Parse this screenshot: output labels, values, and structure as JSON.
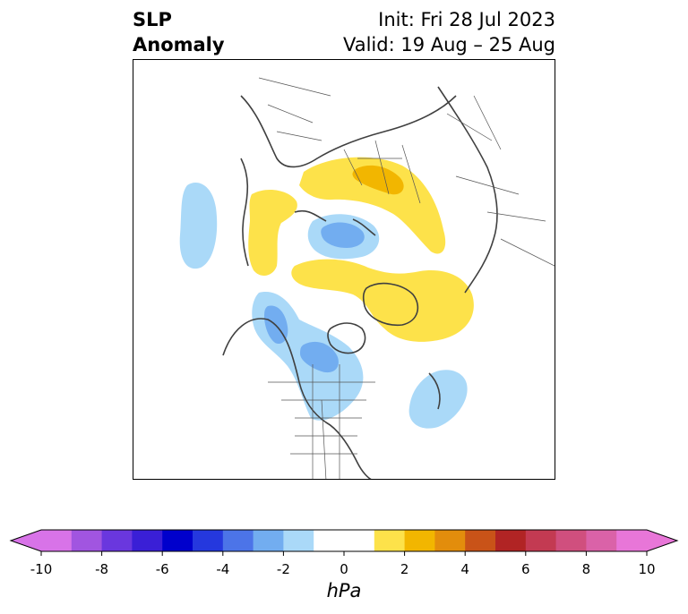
{
  "title": {
    "left_line1": "SLP",
    "left_line2": "Anomaly",
    "init": "Init: Fri 28 Jul 2023",
    "valid": "Valid: 19 Aug – 25 Aug"
  },
  "map": {
    "projection": "north-polar-stereographic",
    "field": "sea level pressure anomaly"
  },
  "colorbar": {
    "unit": "hPa",
    "extend": "both",
    "ticks": [
      "-10",
      "-8",
      "-6",
      "-4",
      "-2",
      "0",
      "2",
      "4",
      "6",
      "8",
      "10"
    ],
    "levels": [
      -10,
      -9,
      -8,
      -7,
      -6,
      -5,
      -4,
      -3,
      -2,
      -1,
      1,
      2,
      3,
      4,
      5,
      6,
      7,
      8,
      9,
      10
    ],
    "colors": [
      "#d873e8",
      "#a155e0",
      "#6a37de",
      "#3a1fd6",
      "#0000cc",
      "#2538de",
      "#4c74e8",
      "#72adf0",
      "#aad9f8",
      "#ffffff",
      "#fde24a",
      "#f2b600",
      "#e38d0c",
      "#c95318",
      "#b12424",
      "#c33a52",
      "#d04f7e",
      "#da62a8",
      "#e876d8"
    ],
    "under_color": "#d873e8",
    "over_color": "#e876d8"
  }
}
